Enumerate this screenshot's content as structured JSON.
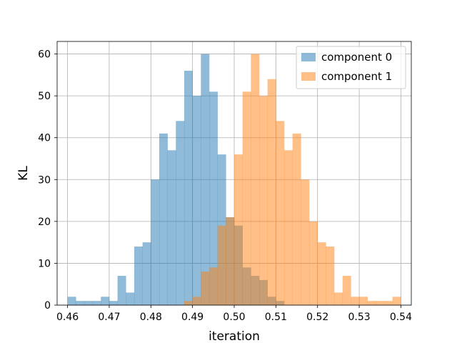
{
  "chart_data": {
    "type": "histogram",
    "xlabel": "iteration",
    "ylabel": "KL",
    "xlim": [
      0.4575,
      0.5425
    ],
    "ylim": [
      0,
      63
    ],
    "x_ticks": [
      0.46,
      0.47,
      0.48,
      0.49,
      0.5,
      0.51,
      0.52,
      0.53,
      0.54
    ],
    "x_tick_labels": [
      "0.46",
      "0.47",
      "0.48",
      "0.49",
      "0.50",
      "0.51",
      "0.52",
      "0.53",
      "0.54"
    ],
    "y_ticks": [
      0,
      10,
      20,
      30,
      40,
      50,
      60
    ],
    "y_tick_labels": [
      "0",
      "10",
      "20",
      "30",
      "40",
      "50",
      "60"
    ],
    "grid": true,
    "legend_position": "top-right",
    "series": [
      {
        "name": "component 0",
        "color": "#1f77b4",
        "bin_start": 0.46,
        "bin_width": 0.002,
        "counts": [
          2,
          1,
          1,
          1,
          2,
          1,
          7,
          3,
          14,
          15,
          30,
          41,
          37,
          44,
          56,
          50,
          60,
          51,
          36,
          21,
          19,
          9,
          7,
          6,
          2,
          1
        ]
      },
      {
        "name": "component 1",
        "color": "#ff7f0e",
        "bin_start": 0.488,
        "bin_width": 0.002,
        "counts": [
          1,
          2,
          8,
          9,
          19,
          21,
          36,
          51,
          60,
          50,
          54,
          44,
          37,
          41,
          30,
          20,
          15,
          14,
          3,
          7,
          2,
          2,
          1,
          1,
          1,
          2
        ]
      }
    ]
  }
}
